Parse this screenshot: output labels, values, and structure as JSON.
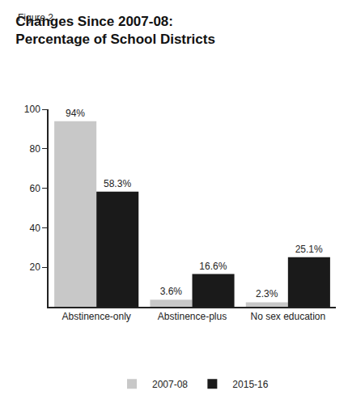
{
  "chart_data": {
    "type": "bar",
    "subtitle": "Figure 2",
    "title": "Changes Since 2007-08: Percentage of School Districts",
    "categories": [
      "Abstinence-only",
      "Abstinence-plus",
      "No sex education"
    ],
    "series": [
      {
        "name": "2007-08",
        "color": "#c8c8c8",
        "values": [
          94,
          3.6,
          2.3
        ],
        "value_labels": [
          "94%",
          "3.6%",
          "2.3%"
        ]
      },
      {
        "name": "2015-16",
        "color": "#1a1a1a",
        "values": [
          58.3,
          16.6,
          25.1
        ],
        "value_labels": [
          "58.3%",
          "16.6%",
          "25.1%"
        ]
      }
    ],
    "ylim": [
      0,
      100
    ],
    "yticks": [
      20,
      40,
      60,
      80,
      100
    ],
    "grid": false,
    "legend": "bottom",
    "data_labels": true
  }
}
